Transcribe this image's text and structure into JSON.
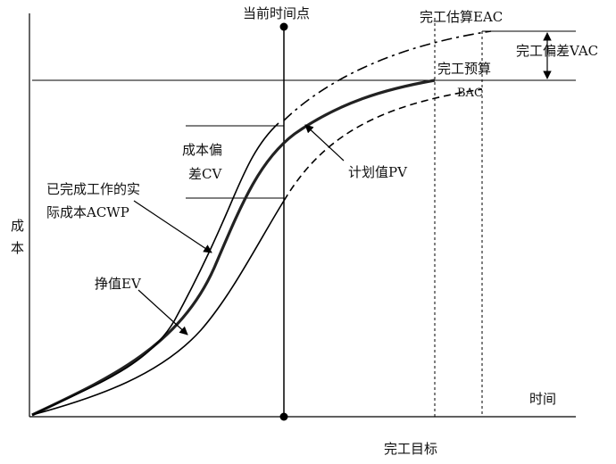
{
  "axes": {
    "y_label": "成本",
    "x_label": "时间"
  },
  "labels": {
    "status_date": "当前时间点",
    "eac": "完工估算EAC",
    "vac": "完工偏差VAC",
    "bac_line1": "完工预算",
    "bac_line2": "BAC",
    "cv_line1": "成本偏",
    "cv_line2": "差CV",
    "acwp_line1": "已完成工作的实",
    "acwp_line2": "际成本ACWP",
    "pv": "计划值PV",
    "ev": "挣值EV",
    "target": "完工目标"
  }
}
